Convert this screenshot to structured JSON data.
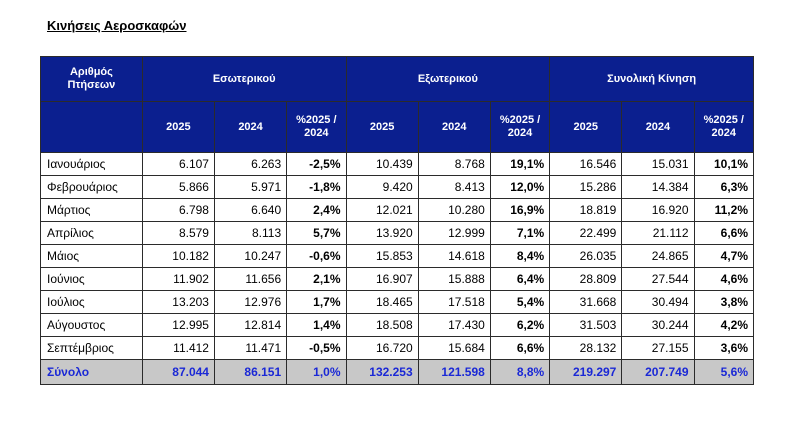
{
  "title": "Κινήσεις Αεροσκαφών",
  "header": {
    "row_label": "Αριθμός Πτήσεων",
    "groups": [
      "Εσωτερικού",
      "Εξωτερικού",
      "Συνολική Κίνηση"
    ],
    "year_cur": "2025",
    "year_prev": "2024",
    "pct_label": "%2025 / 2024"
  },
  "rows": [
    {
      "month": "Ιανουάριος",
      "v": [
        "6.107",
        "6.263",
        "-2,5%",
        "10.439",
        "8.768",
        "19,1%",
        "16.546",
        "15.031",
        "10,1%"
      ]
    },
    {
      "month": "Φεβρουάριος",
      "v": [
        "5.866",
        "5.971",
        "-1,8%",
        "9.420",
        "8.413",
        "12,0%",
        "15.286",
        "14.384",
        "6,3%"
      ]
    },
    {
      "month": "Μάρτιος",
      "v": [
        "6.798",
        "6.640",
        "2,4%",
        "12.021",
        "10.280",
        "16,9%",
        "18.819",
        "16.920",
        "11,2%"
      ]
    },
    {
      "month": "Απρίλιος",
      "v": [
        "8.579",
        "8.113",
        "5,7%",
        "13.920",
        "12.999",
        "7,1%",
        "22.499",
        "21.112",
        "6,6%"
      ]
    },
    {
      "month": "Μάιος",
      "v": [
        "10.182",
        "10.247",
        "-0,6%",
        "15.853",
        "14.618",
        "8,4%",
        "26.035",
        "24.865",
        "4,7%"
      ]
    },
    {
      "month": "Ιούνιος",
      "v": [
        "11.902",
        "11.656",
        "2,1%",
        "16.907",
        "15.888",
        "6,4%",
        "28.809",
        "27.544",
        "4,6%"
      ]
    },
    {
      "month": "Ιούλιος",
      "v": [
        "13.203",
        "12.976",
        "1,7%",
        "18.465",
        "17.518",
        "5,4%",
        "31.668",
        "30.494",
        "3,8%"
      ]
    },
    {
      "month": "Αύγουστος",
      "v": [
        "12.995",
        "12.814",
        "1,4%",
        "18.508",
        "17.430",
        "6,2%",
        "31.503",
        "30.244",
        "4,2%"
      ]
    },
    {
      "month": "Σεπτέμβριος",
      "v": [
        "11.412",
        "11.471",
        "-0,5%",
        "16.720",
        "15.684",
        "6,6%",
        "28.132",
        "27.155",
        "3,6%"
      ]
    }
  ],
  "total": {
    "label": "Σύνολο",
    "v": [
      "87.044",
      "86.151",
      "1,0%",
      "132.253",
      "121.598",
      "8,8%",
      "219.297",
      "207.749",
      "5,6%"
    ]
  },
  "colors": {
    "header_bg": "#0b1f8f",
    "total_bg": "#c8c8c8",
    "total_text": "#1a28d6"
  }
}
